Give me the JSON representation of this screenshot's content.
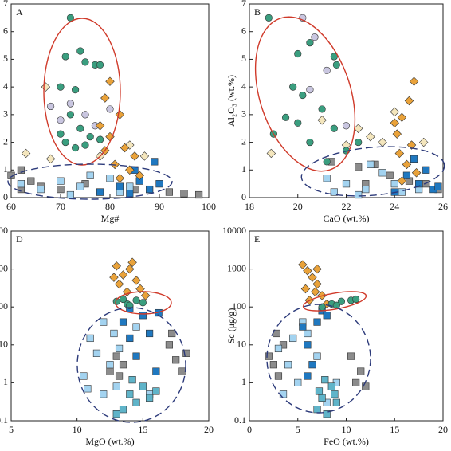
{
  "chart_data": [
    {
      "type": "scatter",
      "title": "A",
      "xlabel": "Mg#",
      "xlim": [
        60,
        100
      ],
      "xticks": [
        60,
        70,
        80,
        90,
        100
      ],
      "ylim": [
        0,
        7
      ],
      "yticks": [
        0,
        1,
        2,
        3,
        4,
        5,
        6,
        7
      ],
      "series": [
        {
          "color": "#c9c6e0",
          "marker": "circle",
          "x": [
            68,
            72,
            75,
            80,
            70,
            77
          ],
          "values": [
            3.3,
            3.4,
            3.0,
            3.2,
            2.8,
            2.6
          ]
        },
        {
          "color": "#f4e6bd",
          "marker": "diamond",
          "x": [
            67,
            63,
            68,
            78,
            84,
            87
          ],
          "values": [
            4.0,
            1.6,
            1.4,
            1.5,
            1.9,
            1.5
          ]
        },
        {
          "color": "#8c8c8c",
          "marker": "square",
          "x": [
            60,
            62,
            64,
            66,
            70,
            75,
            85,
            92,
            95,
            98,
            62
          ],
          "values": [
            0.8,
            1.0,
            0.6,
            0.4,
            0.3,
            0.5,
            0.3,
            0.2,
            0.15,
            0.1,
            0.3
          ]
        },
        {
          "color": "#a3d3f0",
          "marker": "square",
          "x": [
            62,
            66,
            70,
            74,
            78,
            80,
            84,
            88,
            72,
            76,
            82
          ],
          "values": [
            0.5,
            0.3,
            0.6,
            0.4,
            0.2,
            0.7,
            0.4,
            0.3,
            0.1,
            0.8,
            0.2
          ]
        },
        {
          "color": "#1f78c0",
          "marker": "square",
          "x": [
            78,
            82,
            85,
            86,
            88,
            89,
            84,
            90
          ],
          "values": [
            0.2,
            0.4,
            1.0,
            0.6,
            0.3,
            1.3,
            0.15,
            0.5
          ]
        },
        {
          "color": "#3a9e7f",
          "marker": "circle",
          "x": [
            72,
            71,
            74,
            75,
            77,
            78,
            70,
            73,
            72,
            74,
            70,
            76,
            73,
            71,
            75,
            78
          ],
          "values": [
            6.5,
            5.1,
            5.3,
            4.9,
            4.8,
            4.8,
            4.0,
            3.9,
            3.0,
            2.5,
            2.3,
            2.2,
            1.8,
            2.0,
            1.9,
            2.1
          ]
        },
        {
          "color": "#e9a23a",
          "marker": "diamond",
          "x": [
            80,
            79,
            82,
            78,
            80,
            83,
            85,
            81,
            79,
            84,
            82,
            86
          ],
          "values": [
            4.2,
            3.6,
            3.0,
            2.6,
            2.2,
            1.8,
            1.5,
            1.2,
            1.7,
            1.0,
            0.7,
            0.8
          ]
        }
      ]
    },
    {
      "type": "scatter",
      "title": "B",
      "xlabel": "CaO (wt.%)",
      "ylabel": "Al₂O₃ (wt.%)",
      "xlim": [
        18,
        26
      ],
      "xticks": [
        18,
        20,
        22,
        24,
        26
      ],
      "ylim": [
        0,
        7
      ],
      "yticks": [
        0,
        1,
        2,
        3,
        4,
        5,
        6,
        7
      ],
      "series": [
        {
          "color": "#c9c6e0",
          "marker": "circle",
          "x": [
            20.2,
            20.7,
            21.2,
            20.5,
            22
          ],
          "values": [
            6.5,
            5.8,
            4.6,
            3.9,
            2.6
          ]
        },
        {
          "color": "#f4e6bd",
          "marker": "diamond",
          "x": [
            18.9,
            21,
            22.5,
            23,
            23.5,
            24,
            25.2,
            22
          ],
          "values": [
            1.6,
            2.8,
            2.5,
            2.2,
            2.0,
            3.1,
            2.0,
            1.9
          ]
        },
        {
          "color": "#8c8c8c",
          "marker": "square",
          "x": [
            21.4,
            22.5,
            23.2,
            23.8,
            24.6,
            25.3,
            25.8,
            22.8
          ],
          "values": [
            1.3,
            1.1,
            1.2,
            0.8,
            0.6,
            0.5,
            0.3,
            0.5
          ]
        },
        {
          "color": "#a3d3f0",
          "marker": "square",
          "x": [
            21.2,
            22,
            22.8,
            23.5,
            24,
            23,
            22.5,
            24.3,
            25,
            21.5
          ],
          "values": [
            0.7,
            0.5,
            0.3,
            0.9,
            0.5,
            1.2,
            0.1,
            0.2,
            0.3,
            0.2
          ]
        },
        {
          "color": "#1f78c0",
          "marker": "square",
          "x": [
            24,
            24.5,
            25,
            25.3,
            25.6,
            24.8,
            25.8
          ],
          "values": [
            0.2,
            0.8,
            0.5,
            1.0,
            0.3,
            1.4,
            0.4
          ]
        },
        {
          "color": "#3a9e7f",
          "marker": "circle",
          "x": [
            18.8,
            20.5,
            21.5,
            21.6,
            20,
            19.8,
            20.2,
            21,
            20,
            21.5,
            19,
            20.5,
            22,
            21.2,
            19.5,
            22.5
          ],
          "values": [
            6.5,
            5.6,
            5.1,
            4.8,
            5.2,
            4.0,
            3.7,
            3.2,
            2.7,
            2.5,
            2.3,
            2.0,
            1.7,
            1.3,
            2.9,
            2.0
          ]
        },
        {
          "color": "#e9a23a",
          "marker": "diamond",
          "x": [
            24.8,
            24.6,
            24.3,
            24.1,
            24.7,
            24.2,
            24.5,
            24.9,
            24.3,
            24.0
          ],
          "values": [
            4.2,
            3.5,
            2.9,
            2.3,
            1.9,
            1.6,
            1.2,
            0.9,
            0.6,
            2.7
          ]
        }
      ]
    },
    {
      "type": "scatter",
      "title": "D",
      "xlabel": "MgO (wt.%)",
      "log_y": true,
      "xlim": [
        5,
        20
      ],
      "xticks": [
        5,
        10,
        15,
        20
      ],
      "ylim": [
        0.1,
        10000
      ],
      "yticks": [
        0.1,
        1,
        10,
        100,
        1000,
        10000
      ],
      "series": [
        {
          "color": "#8c8c8c",
          "marker": "square",
          "x": [
            13,
            13.5,
            12.5,
            13.2,
            17,
            17.5,
            18,
            17.2,
            18.3
          ],
          "values": [
            5,
            3,
            2,
            1.5,
            10,
            4,
            2,
            20,
            6
          ]
        },
        {
          "color": "#a3d3f0",
          "marker": "square",
          "x": [
            10.5,
            11.5,
            12,
            12.5,
            13,
            11,
            12.8,
            13.2,
            10.8,
            14.5,
            15.5,
            12
          ],
          "values": [
            1.5,
            6,
            0.5,
            3,
            0.8,
            15,
            20,
            8,
            0.7,
            30,
            0.5,
            40
          ]
        },
        {
          "color": "#5fb4c9",
          "marker": "square",
          "x": [
            13.5,
            14,
            14.5,
            15,
            15.5,
            13,
            14.2,
            16
          ],
          "values": [
            0.2,
            0.5,
            0.3,
            0.8,
            0.4,
            0.15,
            1.2,
            0.6
          ]
        },
        {
          "color": "#1f78c0",
          "marker": "square",
          "x": [
            13.5,
            14,
            14.5,
            15,
            15.5,
            16,
            16.2,
            14
          ],
          "values": [
            40,
            15,
            5,
            60,
            20,
            2,
            70,
            90
          ]
        },
        {
          "color": "#e9a23a",
          "marker": "diamond",
          "x": [
            13,
            14,
            13.5,
            14.5,
            13.2,
            14.8,
            15.2,
            13.8,
            14.2,
            12.8
          ],
          "values": [
            1200,
            1000,
            700,
            500,
            400,
            300,
            200,
            250,
            1500,
            600
          ]
        },
        {
          "color": "#3a9e7f",
          "marker": "circle",
          "x": [
            13,
            13.8,
            14.5,
            15,
            14,
            13.5
          ],
          "values": [
            140,
            120,
            150,
            130,
            110,
            160
          ]
        }
      ]
    },
    {
      "type": "scatter",
      "title": "E",
      "xlabel": "FeO (wt.%)",
      "ylabel": "Sc (μg/g)",
      "log_y": true,
      "xlim": [
        0,
        20
      ],
      "xticks": [
        0,
        5,
        10,
        15,
        20
      ],
      "ylim": [
        0.1,
        10000
      ],
      "yticks": [
        0.1,
        1,
        10,
        100,
        1000,
        10000
      ],
      "series": [
        {
          "color": "#8c8c8c",
          "marker": "square",
          "x": [
            2,
            2.5,
            3,
            3.5,
            2.8,
            11,
            11.5,
            12,
            10.5
          ],
          "values": [
            5,
            3,
            1.5,
            10,
            20,
            1,
            2,
            0.8,
            5
          ]
        },
        {
          "color": "#a3d3f0",
          "marker": "square",
          "x": [
            3,
            4,
            5,
            3.5,
            6,
            5.5,
            4.5,
            8,
            9,
            7
          ],
          "values": [
            8,
            3,
            1,
            0.5,
            20,
            40,
            15,
            0.3,
            1,
            5
          ]
        },
        {
          "color": "#5fb4c9",
          "marker": "square",
          "x": [
            7,
            7.5,
            8,
            8.5,
            9,
            7.2,
            8.8,
            7.8
          ],
          "values": [
            0.2,
            0.4,
            0.15,
            0.8,
            0.3,
            0.6,
            0.5,
            1.2
          ]
        },
        {
          "color": "#1f78c0",
          "marker": "square",
          "x": [
            5.5,
            6,
            6.5,
            7,
            7.5,
            6,
            8
          ],
          "values": [
            30,
            10,
            3,
            40,
            80,
            1.5,
            60
          ]
        },
        {
          "color": "#e9a23a",
          "marker": "diamond",
          "x": [
            5.5,
            6,
            6.5,
            7,
            5.8,
            7.5,
            6.2,
            8,
            7,
            6.8
          ],
          "values": [
            1300,
            900,
            600,
            400,
            300,
            200,
            150,
            120,
            1000,
            250
          ]
        },
        {
          "color": "#3a9e7f",
          "marker": "circle",
          "x": [
            7.5,
            8.5,
            9.5,
            10.5,
            11,
            9
          ],
          "values": [
            100,
            120,
            140,
            150,
            160,
            110
          ]
        }
      ]
    }
  ]
}
